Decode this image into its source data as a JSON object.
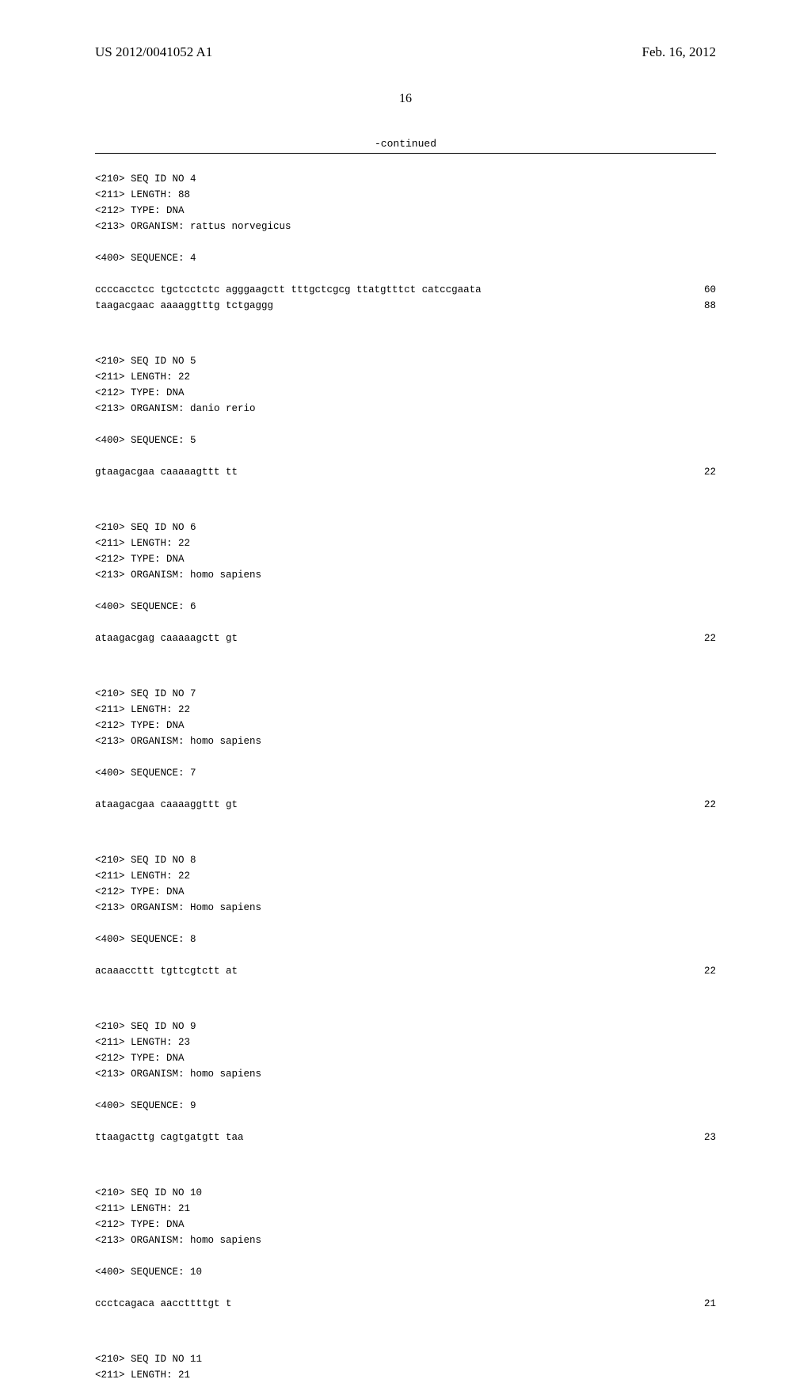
{
  "header": {
    "publication_number": "US 2012/0041052 A1",
    "publication_date": "Feb. 16, 2012"
  },
  "page_number": "16",
  "continued_label": "-continued",
  "sequences": [
    {
      "id": "4",
      "length": "88",
      "type": "DNA",
      "organism": "rattus norvegicus",
      "rows": [
        {
          "text": "ccccacctcc tgctcctctc agggaagctt tttgctcgcg ttatgtttct catccgaata",
          "num": "60"
        },
        {
          "text": "taagacgaac aaaaggtttg tctgaggg",
          "num": "88"
        }
      ]
    },
    {
      "id": "5",
      "length": "22",
      "type": "DNA",
      "organism": "danio rerio",
      "rows": [
        {
          "text": "gtaagacgaa caaaaagttt tt",
          "num": "22"
        }
      ]
    },
    {
      "id": "6",
      "length": "22",
      "type": "DNA",
      "organism": "homo sapiens",
      "rows": [
        {
          "text": "ataagacgag caaaaagctt gt",
          "num": "22"
        }
      ]
    },
    {
      "id": "7",
      "length": "22",
      "type": "DNA",
      "organism": "homo sapiens",
      "rows": [
        {
          "text": "ataagacgaa caaaaggttt gt",
          "num": "22"
        }
      ]
    },
    {
      "id": "8",
      "length": "22",
      "type": "DNA",
      "organism": "Homo sapiens",
      "rows": [
        {
          "text": "acaaaccttt tgttcgtctt at",
          "num": "22"
        }
      ]
    },
    {
      "id": "9",
      "length": "23",
      "type": "DNA",
      "organism": "homo sapiens",
      "rows": [
        {
          "text": "ttaagacttg cagtgatgtt taa",
          "num": "23"
        }
      ]
    },
    {
      "id": "10",
      "length": "21",
      "type": "DNA",
      "organism": "homo sapiens",
      "rows": [
        {
          "text": "ccctcagaca aaccttttgt t",
          "num": "21"
        }
      ]
    },
    {
      "id": "11",
      "length": "21",
      "type": null,
      "organism": null,
      "rows": []
    }
  ],
  "labels": {
    "seq_id_prefix": "<210> SEQ ID NO ",
    "length_prefix": "<211> LENGTH: ",
    "type_prefix": "<212> TYPE: ",
    "organism_prefix": "<213> ORGANISM: ",
    "sequence_prefix": "<400> SEQUENCE: "
  }
}
